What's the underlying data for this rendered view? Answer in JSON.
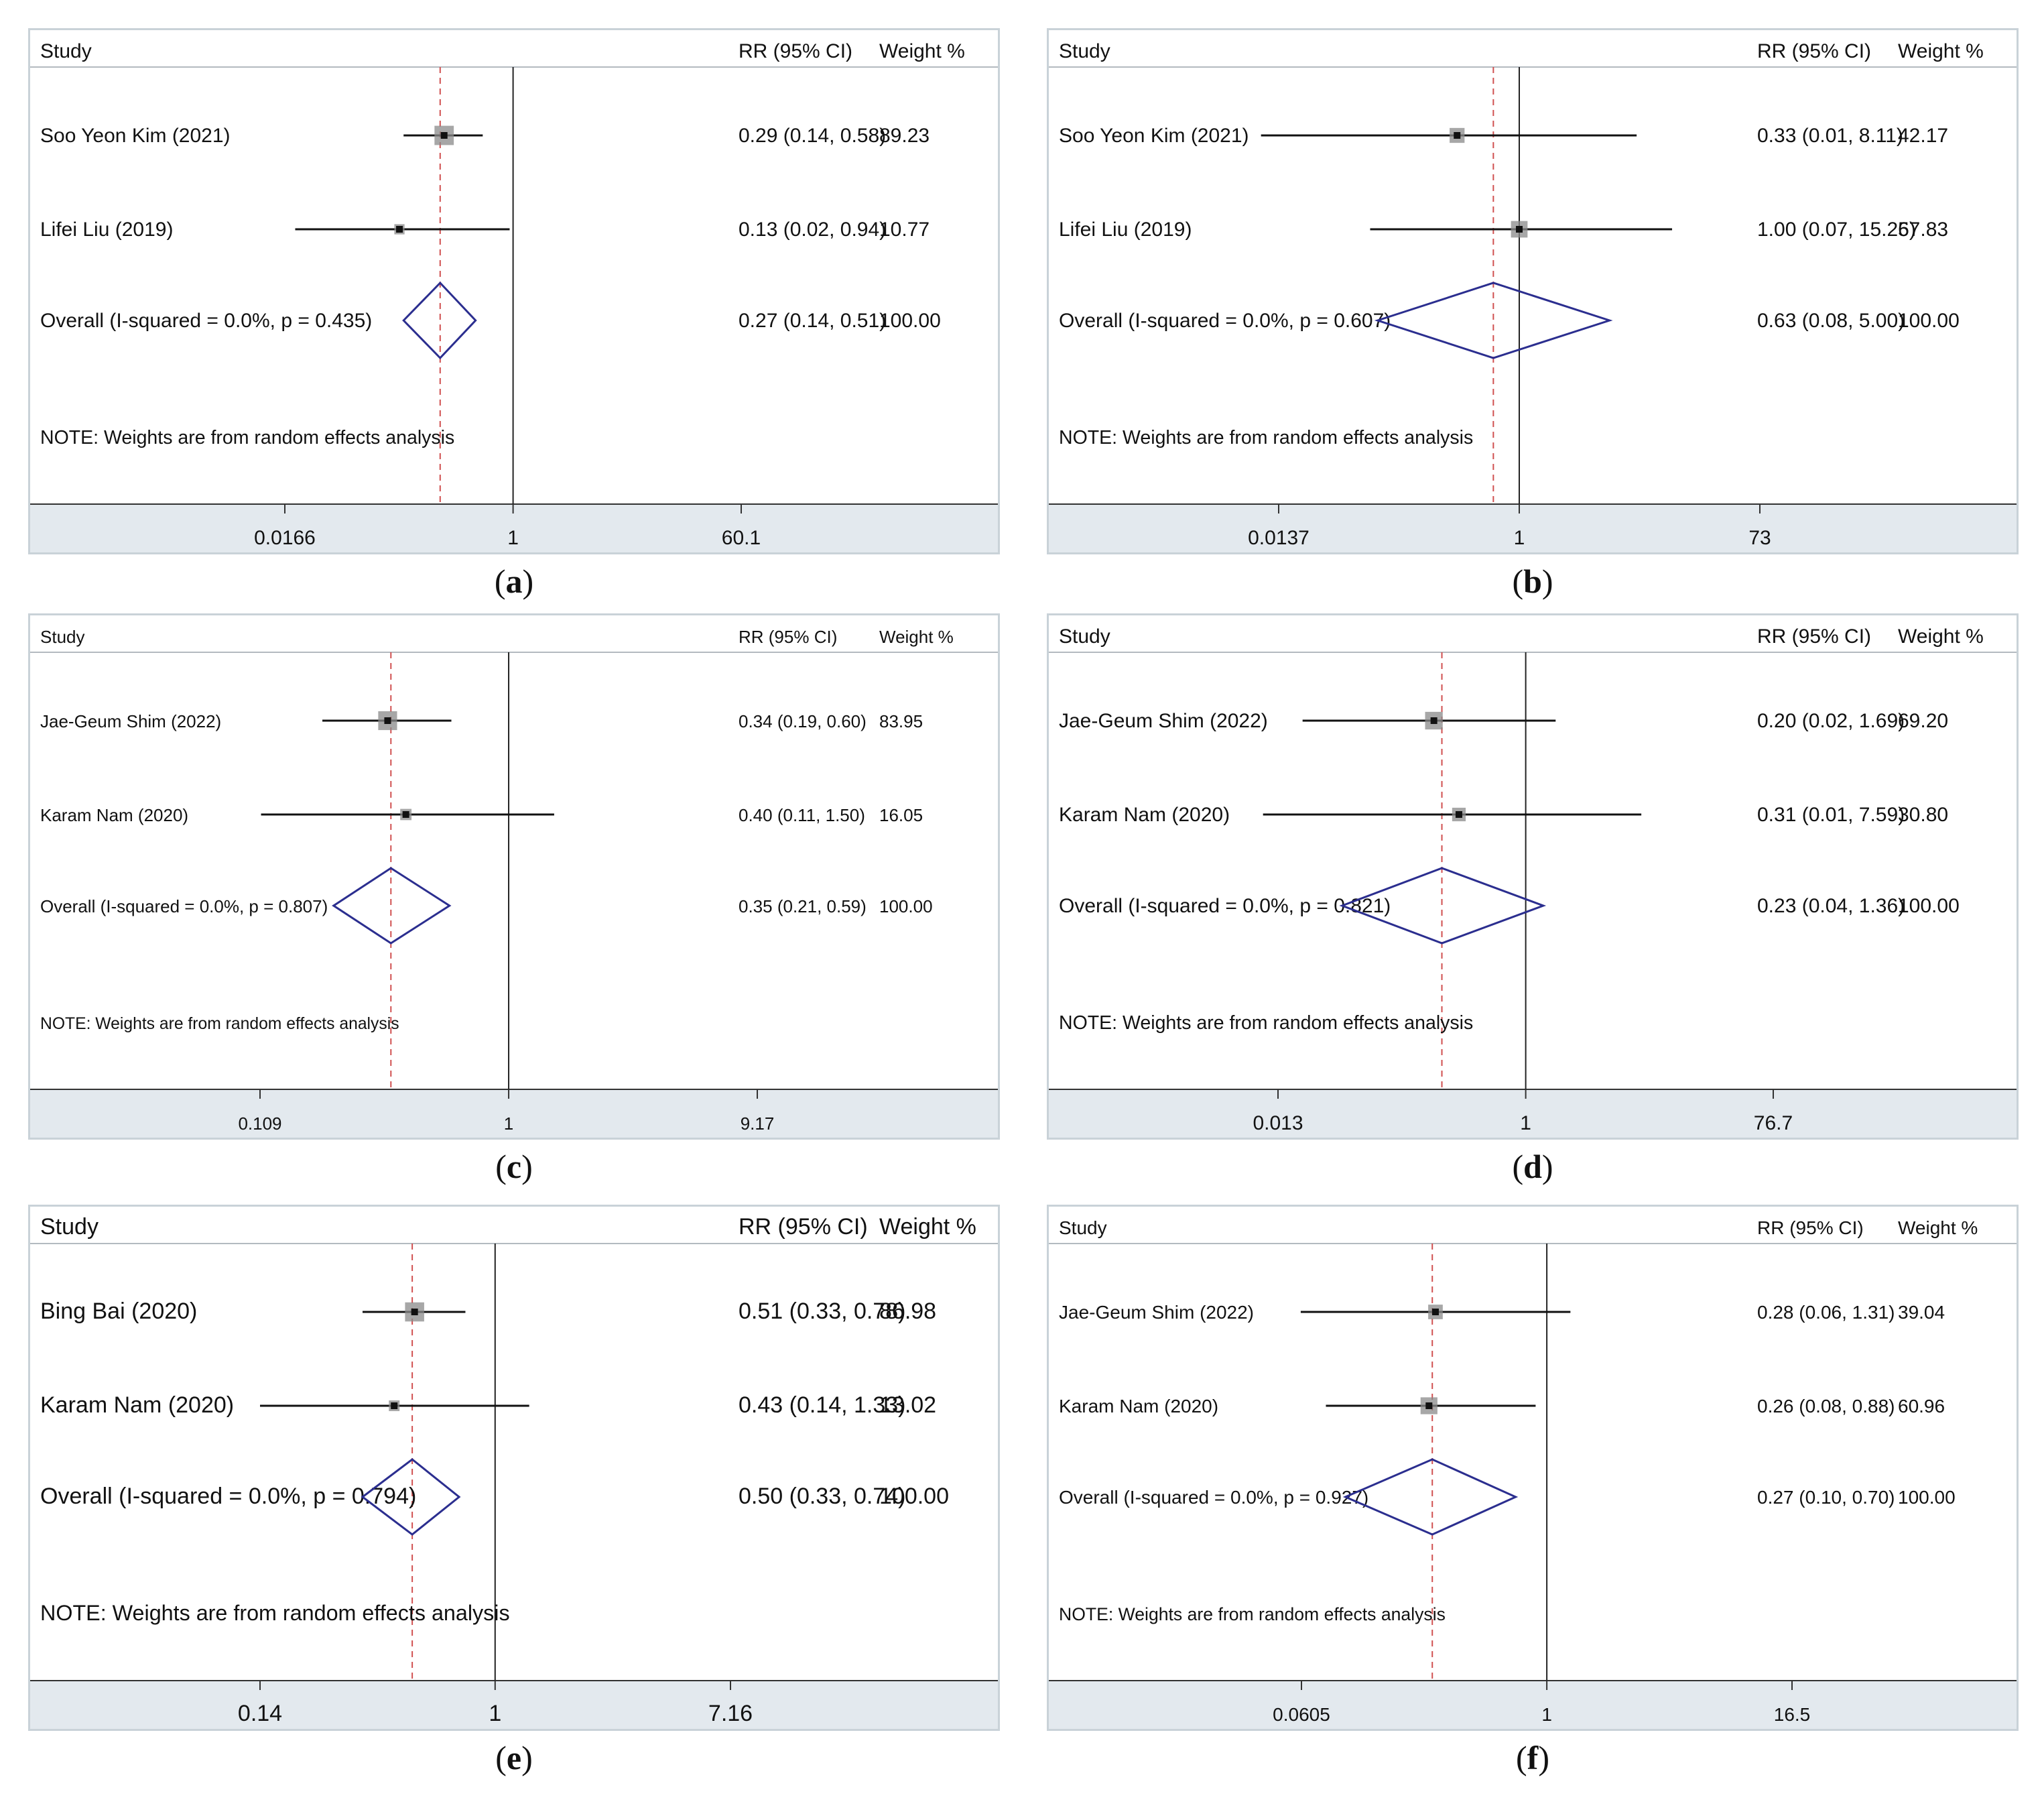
{
  "colors": {
    "diamond": "#2b2e8f",
    "marker": "#111111",
    "box": "#8a8a8a",
    "dashed": "#d05050",
    "axis_band": "#e3e9ee",
    "frame": "#c9d2d8"
  },
  "headers": {
    "study": "Study",
    "rr": "RR (95% CI)",
    "weight": "Weight %"
  },
  "chart_data": [
    {
      "type": "forest",
      "panel": "a",
      "axis_scale": "log",
      "ticks": [
        "0.0166",
        "1",
        "60.1"
      ],
      "note": "NOTE: Weights are from random effects analysis",
      "studies": [
        {
          "name": "Soo Yeon Kim (2021)",
          "rr": 0.29,
          "lo": 0.14,
          "hi": 0.58,
          "weight": 89.23,
          "rr_text": "0.29 (0.14, 0.58)",
          "weight_text": "89.23"
        },
        {
          "name": "Lifei Liu (2019)",
          "rr": 0.13,
          "lo": 0.02,
          "hi": 0.94,
          "weight": 10.77,
          "rr_text": "0.13 (0.02, 0.94)",
          "weight_text": "10.77"
        }
      ],
      "overall": {
        "label": "Overall  (I-squared = 0.0%, p = 0.435)",
        "rr": 0.27,
        "lo": 0.14,
        "hi": 0.51,
        "rr_text": "0.27 (0.14, 0.51)",
        "weight_text": "100.00"
      }
    },
    {
      "type": "forest",
      "panel": "b",
      "axis_scale": "log",
      "ticks": [
        "0.0137",
        "1",
        "73"
      ],
      "note": "NOTE: Weights are from random effects analysis",
      "studies": [
        {
          "name": "Soo Yeon Kim (2021)",
          "rr": 0.33,
          "lo": 0.01,
          "hi": 8.11,
          "weight": 42.17,
          "rr_text": "0.33 (0.01, 8.11)",
          "weight_text": "42.17"
        },
        {
          "name": "Lifei Liu (2019)",
          "rr": 1.0,
          "lo": 0.07,
          "hi": 15.26,
          "weight": 57.83,
          "rr_text": "1.00 (0.07, 15.26)",
          "weight_text": "57.83"
        }
      ],
      "overall": {
        "label": "Overall  (I-squared = 0.0%, p = 0.607)",
        "rr": 0.63,
        "lo": 0.08,
        "hi": 5.0,
        "rr_text": "0.63 (0.08, 5.00)",
        "weight_text": "100.00"
      }
    },
    {
      "type": "forest",
      "panel": "c",
      "axis_scale": "log",
      "ticks": [
        "0.109",
        "1",
        "9.17"
      ],
      "note": "NOTE: Weights are from random effects analysis",
      "studies": [
        {
          "name": "Jae-Geum Shim (2022)",
          "rr": 0.34,
          "lo": 0.19,
          "hi": 0.6,
          "weight": 83.95,
          "rr_text": "0.34 (0.19, 0.60)",
          "weight_text": "83.95"
        },
        {
          "name": "Karam Nam (2020)",
          "rr": 0.4,
          "lo": 0.11,
          "hi": 1.5,
          "weight": 16.05,
          "rr_text": "0.40 (0.11, 1.50)",
          "weight_text": "16.05"
        }
      ],
      "overall": {
        "label": "Overall  (I-squared = 0.0%, p = 0.807)",
        "rr": 0.35,
        "lo": 0.21,
        "hi": 0.59,
        "rr_text": "0.35 (0.21, 0.59)",
        "weight_text": "100.00"
      }
    },
    {
      "type": "forest",
      "panel": "d",
      "axis_scale": "log",
      "ticks": [
        "0.013",
        "1",
        "76.7"
      ],
      "note": "NOTE: Weights are from random effects analysis",
      "studies": [
        {
          "name": "Jae-Geum Shim (2022)",
          "rr": 0.2,
          "lo": 0.02,
          "hi": 1.69,
          "weight": 69.2,
          "rr_text": "0.20 (0.02, 1.69)",
          "weight_text": "69.20"
        },
        {
          "name": "Karam Nam (2020)",
          "rr": 0.31,
          "lo": 0.01,
          "hi": 7.59,
          "weight": 30.8,
          "rr_text": "0.31 (0.01, 7.59)",
          "weight_text": "30.80"
        }
      ],
      "overall": {
        "label": "Overall  (I-squared = 0.0%, p = 0.821)",
        "rr": 0.23,
        "lo": 0.04,
        "hi": 1.36,
        "rr_text": "0.23 (0.04, 1.36)",
        "weight_text": "100.00"
      }
    },
    {
      "type": "forest",
      "panel": "e",
      "axis_scale": "log",
      "ticks": [
        "0.14",
        "1",
        "7.16"
      ],
      "note": "NOTE: Weights are from random effects analysis",
      "studies": [
        {
          "name": "Bing Bai (2020)",
          "rr": 0.51,
          "lo": 0.33,
          "hi": 0.78,
          "weight": 86.98,
          "rr_text": "0.51 (0.33, 0.78)",
          "weight_text": "86.98"
        },
        {
          "name": "Karam Nam (2020)",
          "rr": 0.43,
          "lo": 0.14,
          "hi": 1.33,
          "weight": 13.02,
          "rr_text": "0.43 (0.14, 1.33)",
          "weight_text": "13.02"
        }
      ],
      "overall": {
        "label": "Overall  (I-squared = 0.0%, p = 0.794)",
        "rr": 0.5,
        "lo": 0.33,
        "hi": 0.74,
        "rr_text": "0.50 (0.33, 0.74)",
        "weight_text": "100.00"
      }
    },
    {
      "type": "forest",
      "panel": "f",
      "axis_scale": "log",
      "ticks": [
        "0.0605",
        "1",
        "16.5"
      ],
      "note": "NOTE: Weights are from random effects analysis",
      "studies": [
        {
          "name": "Jae-Geum Shim (2022)",
          "rr": 0.28,
          "lo": 0.06,
          "hi": 1.31,
          "weight": 39.04,
          "rr_text": "0.28 (0.06, 1.31)",
          "weight_text": "39.04"
        },
        {
          "name": "Karam Nam (2020)",
          "rr": 0.26,
          "lo": 0.08,
          "hi": 0.88,
          "weight": 60.96,
          "rr_text": "0.26 (0.08, 0.88)",
          "weight_text": "60.96"
        }
      ],
      "overall": {
        "label": "Overall  (I-squared = 0.0%, p = 0.927)",
        "rr": 0.27,
        "lo": 0.1,
        "hi": 0.7,
        "rr_text": "0.27 (0.10, 0.70)",
        "weight_text": "100.00"
      }
    }
  ],
  "panel_labels": [
    "(a)",
    "(b)",
    "(c)",
    "(d)",
    "(e)",
    "(f)"
  ]
}
